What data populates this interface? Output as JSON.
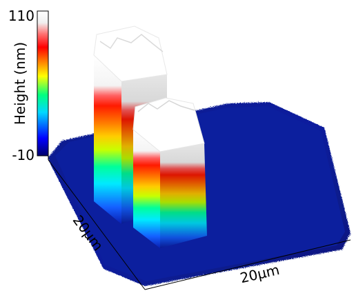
{
  "chart_data": {
    "type": "surface3d",
    "title": "",
    "colorbar": {
      "label": "Height (nm)",
      "range": [
        -10,
        110
      ],
      "tick_labels": [
        "110",
        "-10"
      ],
      "colormap": [
        "#000080",
        "#0000ff",
        "#00ffff",
        "#00ff00",
        "#ffff00",
        "#ff8000",
        "#ff0000",
        "#ffffff"
      ]
    },
    "axes": {
      "x_label": "20µm",
      "y_label": "20µm",
      "x_range_um": [
        0,
        20
      ],
      "y_range_um": [
        0,
        20
      ]
    },
    "surface": {
      "baseline_height_nm": 0,
      "features": [
        {
          "name": "pillar-back",
          "height_nm": 110,
          "top_color": "#ffffff"
        },
        {
          "name": "pillar-front",
          "height_nm": 110,
          "top_color": "#ffffff"
        }
      ]
    }
  }
}
